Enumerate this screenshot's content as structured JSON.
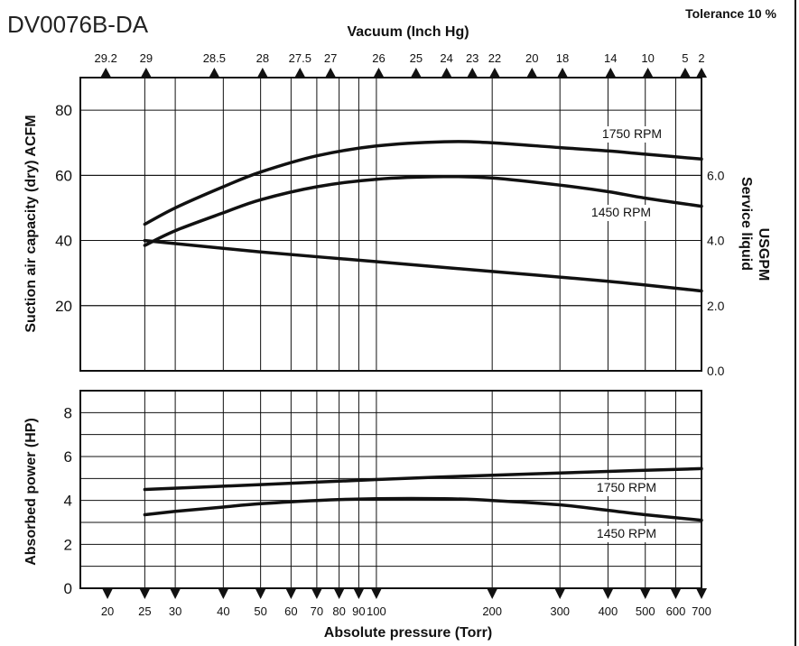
{
  "page": {
    "model": "DV0076B-DA",
    "tolerance": "Tolerance 10 %"
  },
  "chart_data": [
    {
      "type": "line",
      "panel": "capacity",
      "title": "DV0076B-DA",
      "xlabel": "Absolute pressure (Torr)",
      "x_scale": "log",
      "xlim": [
        17,
        700
      ],
      "secondary_xlabel": "Vacuum (Inch Hg)",
      "secondary_x_ticks": [
        {
          "label": "29.2",
          "torr": 19.8
        },
        {
          "label": "29",
          "torr": 25.2
        },
        {
          "label": "28.5",
          "torr": 37.9
        },
        {
          "label": "28",
          "torr": 50.6
        },
        {
          "label": "27.5",
          "torr": 63.3
        },
        {
          "label": "27",
          "torr": 76.0
        },
        {
          "label": "26",
          "torr": 101.4
        },
        {
          "label": "25",
          "torr": 126.8
        },
        {
          "label": "24",
          "torr": 152.2
        },
        {
          "label": "23",
          "torr": 177.6
        },
        {
          "label": "22",
          "torr": 203.0
        },
        {
          "label": "20",
          "torr": 253.8
        },
        {
          "label": "18",
          "torr": 304.6
        },
        {
          "label": "14",
          "torr": 406.2
        },
        {
          "label": "10",
          "torr": 507.8
        },
        {
          "label": "5",
          "torr": 634.8
        },
        {
          "label": "2",
          "torr": 711.0
        }
      ],
      "ylabel": "Suction air capacity (dry) ACFM",
      "ylim": [
        0,
        90
      ],
      "y_ticks": [
        "20",
        "40",
        "60",
        "80"
      ],
      "y2label_line1": "USGPM",
      "y2label_line2": "Service liquid",
      "y2lim": [
        0,
        9
      ],
      "y2_ticks": [
        "0.0",
        "2.0",
        "4.0",
        "6.0"
      ],
      "grid": true,
      "series": [
        {
          "name": "1750 RPM",
          "axis": "left",
          "x": [
            25,
            30,
            40,
            50,
            70,
            100,
            150,
            200,
            300,
            400,
            500,
            700
          ],
          "y": [
            45,
            50,
            56.5,
            61,
            66,
            69,
            70.3,
            70,
            68.5,
            67.5,
            66.5,
            65
          ]
        },
        {
          "name": "1450 RPM",
          "axis": "left",
          "x": [
            25,
            30,
            40,
            50,
            70,
            100,
            150,
            200,
            300,
            400,
            500,
            700
          ],
          "y": [
            38.5,
            43,
            48.5,
            52.5,
            56.5,
            58.8,
            59.6,
            59.2,
            57,
            55,
            53,
            50.5
          ]
        },
        {
          "name": "",
          "axis": "right",
          "x": [
            25,
            50,
            100,
            200,
            400,
            700
          ],
          "y": [
            4.0,
            3.65,
            3.35,
            3.05,
            2.75,
            2.45
          ]
        }
      ]
    },
    {
      "type": "line",
      "panel": "power",
      "xlabel": "Absolute pressure (Torr)",
      "x_scale": "log",
      "xlim": [
        17,
        700
      ],
      "x_ticks": [
        "20",
        "25",
        "30",
        "40",
        "50",
        "60",
        "70",
        "80",
        "90",
        "100",
        "200",
        "300",
        "400",
        "500",
        "600",
        "700"
      ],
      "ylabel": "Absorbed power (HP)",
      "ylim": [
        0,
        9
      ],
      "y_ticks": [
        "0",
        "2",
        "4",
        "6",
        "8"
      ],
      "grid": true,
      "series": [
        {
          "name": "1750 RPM",
          "x": [
            25,
            50,
            100,
            200,
            400,
            700
          ],
          "y": [
            4.5,
            4.72,
            4.95,
            5.15,
            5.32,
            5.45
          ]
        },
        {
          "name": "1450 RPM",
          "x": [
            25,
            30,
            40,
            50,
            70,
            100,
            150,
            200,
            300,
            400,
            500,
            700
          ],
          "y": [
            3.35,
            3.5,
            3.7,
            3.85,
            4.0,
            4.08,
            4.08,
            4.0,
            3.8,
            3.55,
            3.35,
            3.1
          ]
        }
      ]
    }
  ]
}
